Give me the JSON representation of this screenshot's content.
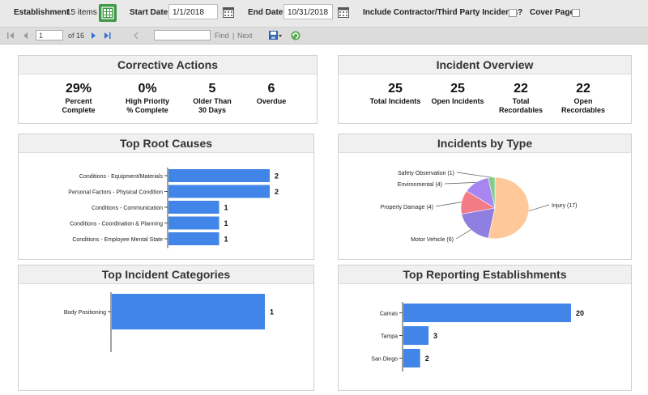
{
  "filters": {
    "establishment_label": "Establishment",
    "establishment_count": "15 items",
    "start_label": "Start Date",
    "start_value": "1/1/2018",
    "end_label": "End Date",
    "end_value": "10/31/2018",
    "contractor_label": "Include Contractor/Third Party Incidents?",
    "cover_label": "Cover Page"
  },
  "toolbar": {
    "page_value": "1",
    "page_of": "of 16",
    "find_label": "Find",
    "separator": "|",
    "next_label": "Next"
  },
  "corrective_actions": {
    "title": "Corrective Actions",
    "kpis": [
      {
        "value": "29%",
        "label1": "Percent",
        "label2": "Complete"
      },
      {
        "value": "0%",
        "label1": "High Priority",
        "label2": "% Complete"
      },
      {
        "value": "5",
        "label1": "Older Than",
        "label2": "30 Days"
      },
      {
        "value": "6",
        "label1": "Overdue",
        "label2": ""
      }
    ]
  },
  "incident_overview": {
    "title": "Incident Overview",
    "kpis": [
      {
        "value": "25",
        "label1": "Total Incidents",
        "label2": ""
      },
      {
        "value": "25",
        "label1": "Open Incidents",
        "label2": ""
      },
      {
        "value": "22",
        "label1": "Total",
        "label2": "Recordables"
      },
      {
        "value": "22",
        "label1": "Open",
        "label2": "Recordables"
      }
    ]
  },
  "colors": {
    "bar": "#4285e8",
    "panel_header": "#f0f0f0",
    "establishment_button": "#3f9a47"
  },
  "chart_data": [
    {
      "id": "root_causes",
      "type": "bar",
      "orientation": "horizontal",
      "title": "Top Root Causes",
      "categories": [
        "Conditions - Equipment/Materials",
        "Personal Factors - Physical Condition",
        "Conditions - Communication",
        "Conditions - Coordination & Planning",
        "Conditions - Employee Mental State"
      ],
      "values": [
        2,
        2,
        1,
        1,
        1
      ],
      "xlim": [
        0,
        2
      ]
    },
    {
      "id": "incidents_by_type",
      "type": "pie",
      "title": "Incidents by Type",
      "labels": [
        "Injury (17)",
        "Motor Vehicle (6)",
        "Property Damage (4)",
        "Environmental (4)",
        "Safety Observation (1)"
      ],
      "values": [
        17,
        6,
        4,
        4,
        1
      ],
      "colors": [
        "#ffc89a",
        "#8f7fe0",
        "#f27c86",
        "#a886f2",
        "#7fcf8a"
      ]
    },
    {
      "id": "incident_categories",
      "type": "bar",
      "orientation": "horizontal",
      "title": "Top Incident Categories",
      "categories": [
        "Body Positioning"
      ],
      "values": [
        1
      ],
      "xlim": [
        0,
        1
      ]
    },
    {
      "id": "reporting_establishments",
      "type": "bar",
      "orientation": "horizontal",
      "title": "Top Reporting Establishments",
      "categories": [
        "Camas",
        "Tampa",
        "San Diego"
      ],
      "values": [
        20,
        3,
        2
      ],
      "xlim": [
        0,
        20
      ]
    }
  ]
}
